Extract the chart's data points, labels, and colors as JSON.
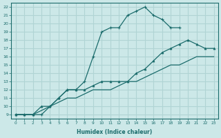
{
  "bg_color": "#cce8e8",
  "grid_color": "#b0d4d4",
  "line_color": "#1a6b6b",
  "line1_x": [
    0,
    1,
    2,
    3,
    4,
    5,
    6,
    7,
    8,
    9,
    10,
    11,
    12,
    13,
    14,
    15,
    16,
    17,
    18,
    19
  ],
  "line1_y": [
    9,
    9,
    9,
    9,
    10,
    11,
    12,
    12,
    13,
    16,
    19,
    19.5,
    19.5,
    21,
    21.5,
    22,
    21,
    20.5,
    19.5,
    19.5
  ],
  "line2_x": [
    0,
    1,
    2,
    3,
    4,
    5,
    6,
    7,
    8,
    9,
    10,
    11,
    12,
    13,
    14,
    15,
    16,
    17,
    18,
    19,
    20,
    21,
    22,
    23
  ],
  "line2_y": [
    9,
    9,
    9,
    10,
    10,
    11,
    12,
    12,
    12,
    12.5,
    13,
    13,
    13,
    13,
    14,
    14.5,
    15.5,
    16.5,
    17,
    17.5,
    18,
    17.5,
    17,
    17
  ],
  "line3_x": [
    0,
    1,
    2,
    3,
    4,
    5,
    6,
    7,
    8,
    9,
    10,
    11,
    12,
    13,
    14,
    15,
    16,
    17,
    18,
    19,
    20,
    21,
    22,
    23
  ],
  "line3_y": [
    9,
    9,
    9,
    9.5,
    10,
    10.5,
    11,
    11,
    11.5,
    12,
    12,
    12,
    12.5,
    13,
    13,
    13.5,
    14,
    14.5,
    15,
    15,
    15.5,
    16,
    16,
    16
  ],
  "xlim": [
    -0.5,
    23.5
  ],
  "ylim": [
    8.5,
    22.5
  ],
  "yticks": [
    9,
    10,
    11,
    12,
    13,
    14,
    15,
    16,
    17,
    18,
    19,
    20,
    21,
    22
  ],
  "xticks": [
    0,
    1,
    2,
    3,
    4,
    5,
    6,
    7,
    8,
    9,
    10,
    11,
    12,
    13,
    14,
    15,
    16,
    17,
    18,
    19,
    20,
    21,
    22,
    23
  ],
  "xlabel": "Humidex (Indice chaleur)"
}
